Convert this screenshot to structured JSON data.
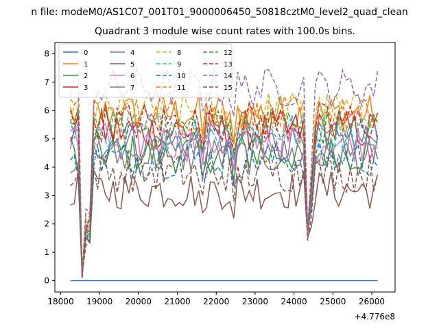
{
  "chart_data": {
    "type": "line",
    "suptitle": "n file: modeM0/AS1C07_001T01_9000006450_50818cztM0_level2_quad_clean",
    "title": "Quadrant 3 module wise count rates with 100.0s bins.",
    "xlabel": "",
    "ylabel": "",
    "x_offset_label": "+4.776e8",
    "xlim": [
      17850,
      26600
    ],
    "ylim": [
      -0.4,
      8.4
    ],
    "xticks": [
      18000,
      19000,
      20000,
      21000,
      22000,
      23000,
      24000,
      25000,
      26000
    ],
    "yticks": [
      0,
      1,
      2,
      3,
      4,
      5,
      6,
      7,
      8
    ],
    "grid": false,
    "legend_position": "top-left",
    "legend_columns": 4,
    "series": [
      {
        "name": "0",
        "color": "#1f77b4",
        "style": "solid"
      },
      {
        "name": "1",
        "color": "#ff7f0e",
        "style": "solid"
      },
      {
        "name": "2",
        "color": "#2ca02c",
        "style": "solid"
      },
      {
        "name": "3",
        "color": "#d62728",
        "style": "solid"
      },
      {
        "name": "4",
        "color": "#9467bd",
        "style": "solid"
      },
      {
        "name": "5",
        "color": "#8c564b",
        "style": "solid"
      },
      {
        "name": "6",
        "color": "#e377c2",
        "style": "solid"
      },
      {
        "name": "7",
        "color": "#7f7f7f",
        "style": "solid"
      },
      {
        "name": "8",
        "color": "#bcbd22",
        "style": "dashed"
      },
      {
        "name": "9",
        "color": "#17becf",
        "style": "dashed"
      },
      {
        "name": "10",
        "color": "#1f77b4",
        "style": "dashed"
      },
      {
        "name": "11",
        "color": "#ff7f0e",
        "style": "dashed"
      },
      {
        "name": "12",
        "color": "#2ca02c",
        "style": "dashed"
      },
      {
        "name": "13",
        "color": "#d62728",
        "style": "dashed"
      },
      {
        "name": "14",
        "color": "#9467bd",
        "style": "dashed"
      },
      {
        "name": "15",
        "color": "#8c564b",
        "style": "dashed"
      }
    ]
  }
}
